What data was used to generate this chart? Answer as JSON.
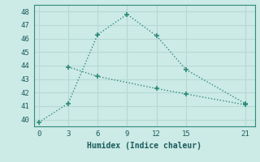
{
  "line1_x": [
    0,
    3,
    6,
    9,
    12,
    15,
    21
  ],
  "line1_y": [
    39.8,
    41.2,
    46.3,
    47.8,
    46.2,
    43.7,
    41.2
  ],
  "line2_x": [
    3,
    6,
    12,
    15,
    21
  ],
  "line2_y": [
    43.9,
    43.2,
    42.3,
    41.9,
    41.1
  ],
  "line_color": "#2e8b7a",
  "bg_color": "#cceae6",
  "grid_color": "#b8d8d4",
  "xlabel": "Humidex (Indice chaleur)",
  "xlim": [
    -0.5,
    22
  ],
  "ylim": [
    39.5,
    48.5
  ],
  "xticks": [
    0,
    3,
    6,
    9,
    12,
    15,
    21
  ],
  "yticks": [
    40,
    41,
    42,
    43,
    44,
    45,
    46,
    47,
    48
  ],
  "font_color": "#1a5c5c",
  "markersize": 5,
  "linewidth": 1.0
}
